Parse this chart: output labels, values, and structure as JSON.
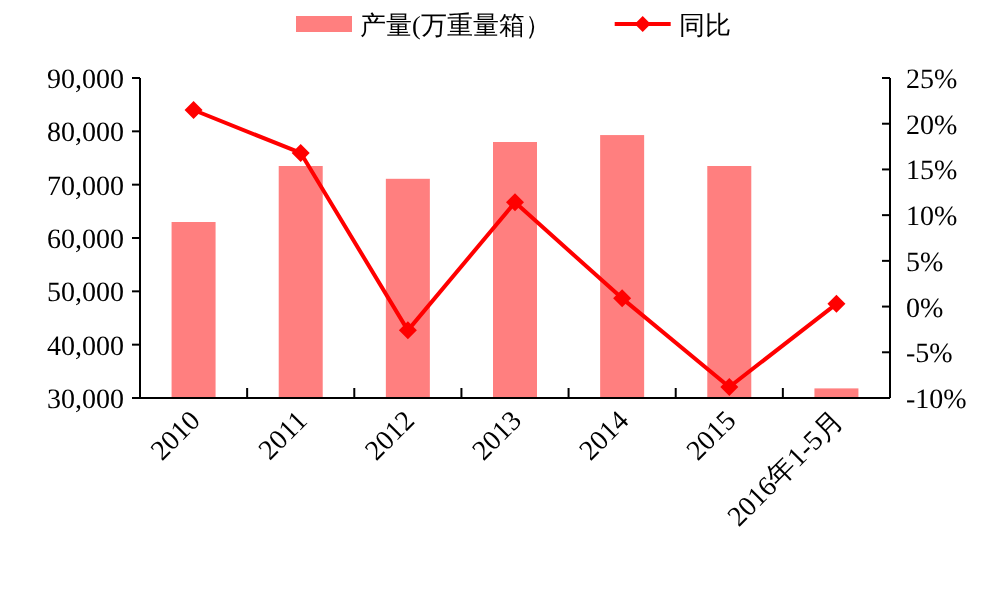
{
  "chart_data": {
    "type": "bar",
    "categories": [
      "2010",
      "2011",
      "2012",
      "2013",
      "2014",
      "2015",
      "2016年1-5月"
    ],
    "series": [
      {
        "name": "产量(万重量箱）",
        "color": "#ff7f7f",
        "values": [
          63000,
          73500,
          71100,
          78000,
          79300,
          73500,
          31800
        ]
      },
      {
        "name": "同比",
        "type": "line",
        "axis": "y2",
        "color": "#ff0000",
        "marker": "diamond",
        "values": [
          21.5,
          16.8,
          -2.6,
          11.4,
          0.9,
          -8.8,
          0.3
        ]
      }
    ],
    "ylim": [
      30000,
      90000
    ],
    "yticks": [
      {
        "value": 30000,
        "label": "30,000"
      },
      {
        "value": 40000,
        "label": "40,000"
      },
      {
        "value": 50000,
        "label": "50,000"
      },
      {
        "value": 60000,
        "label": "60,000"
      },
      {
        "value": 70000,
        "label": "70,000"
      },
      {
        "value": 80000,
        "label": "80,000"
      },
      {
        "value": 90000,
        "label": "90,000"
      }
    ],
    "y2lim": [
      -10,
      25
    ],
    "y2ticks": [
      {
        "value": -10,
        "label": "-10%"
      },
      {
        "value": -5,
        "label": "-5%"
      },
      {
        "value": 0,
        "label": "0%"
      },
      {
        "value": 5,
        "label": "5%"
      },
      {
        "value": 10,
        "label": "10%"
      },
      {
        "value": 15,
        "label": "15%"
      },
      {
        "value": 20,
        "label": "20%"
      },
      {
        "value": 25,
        "label": "25%"
      }
    ],
    "grid": false,
    "legend": "top"
  }
}
